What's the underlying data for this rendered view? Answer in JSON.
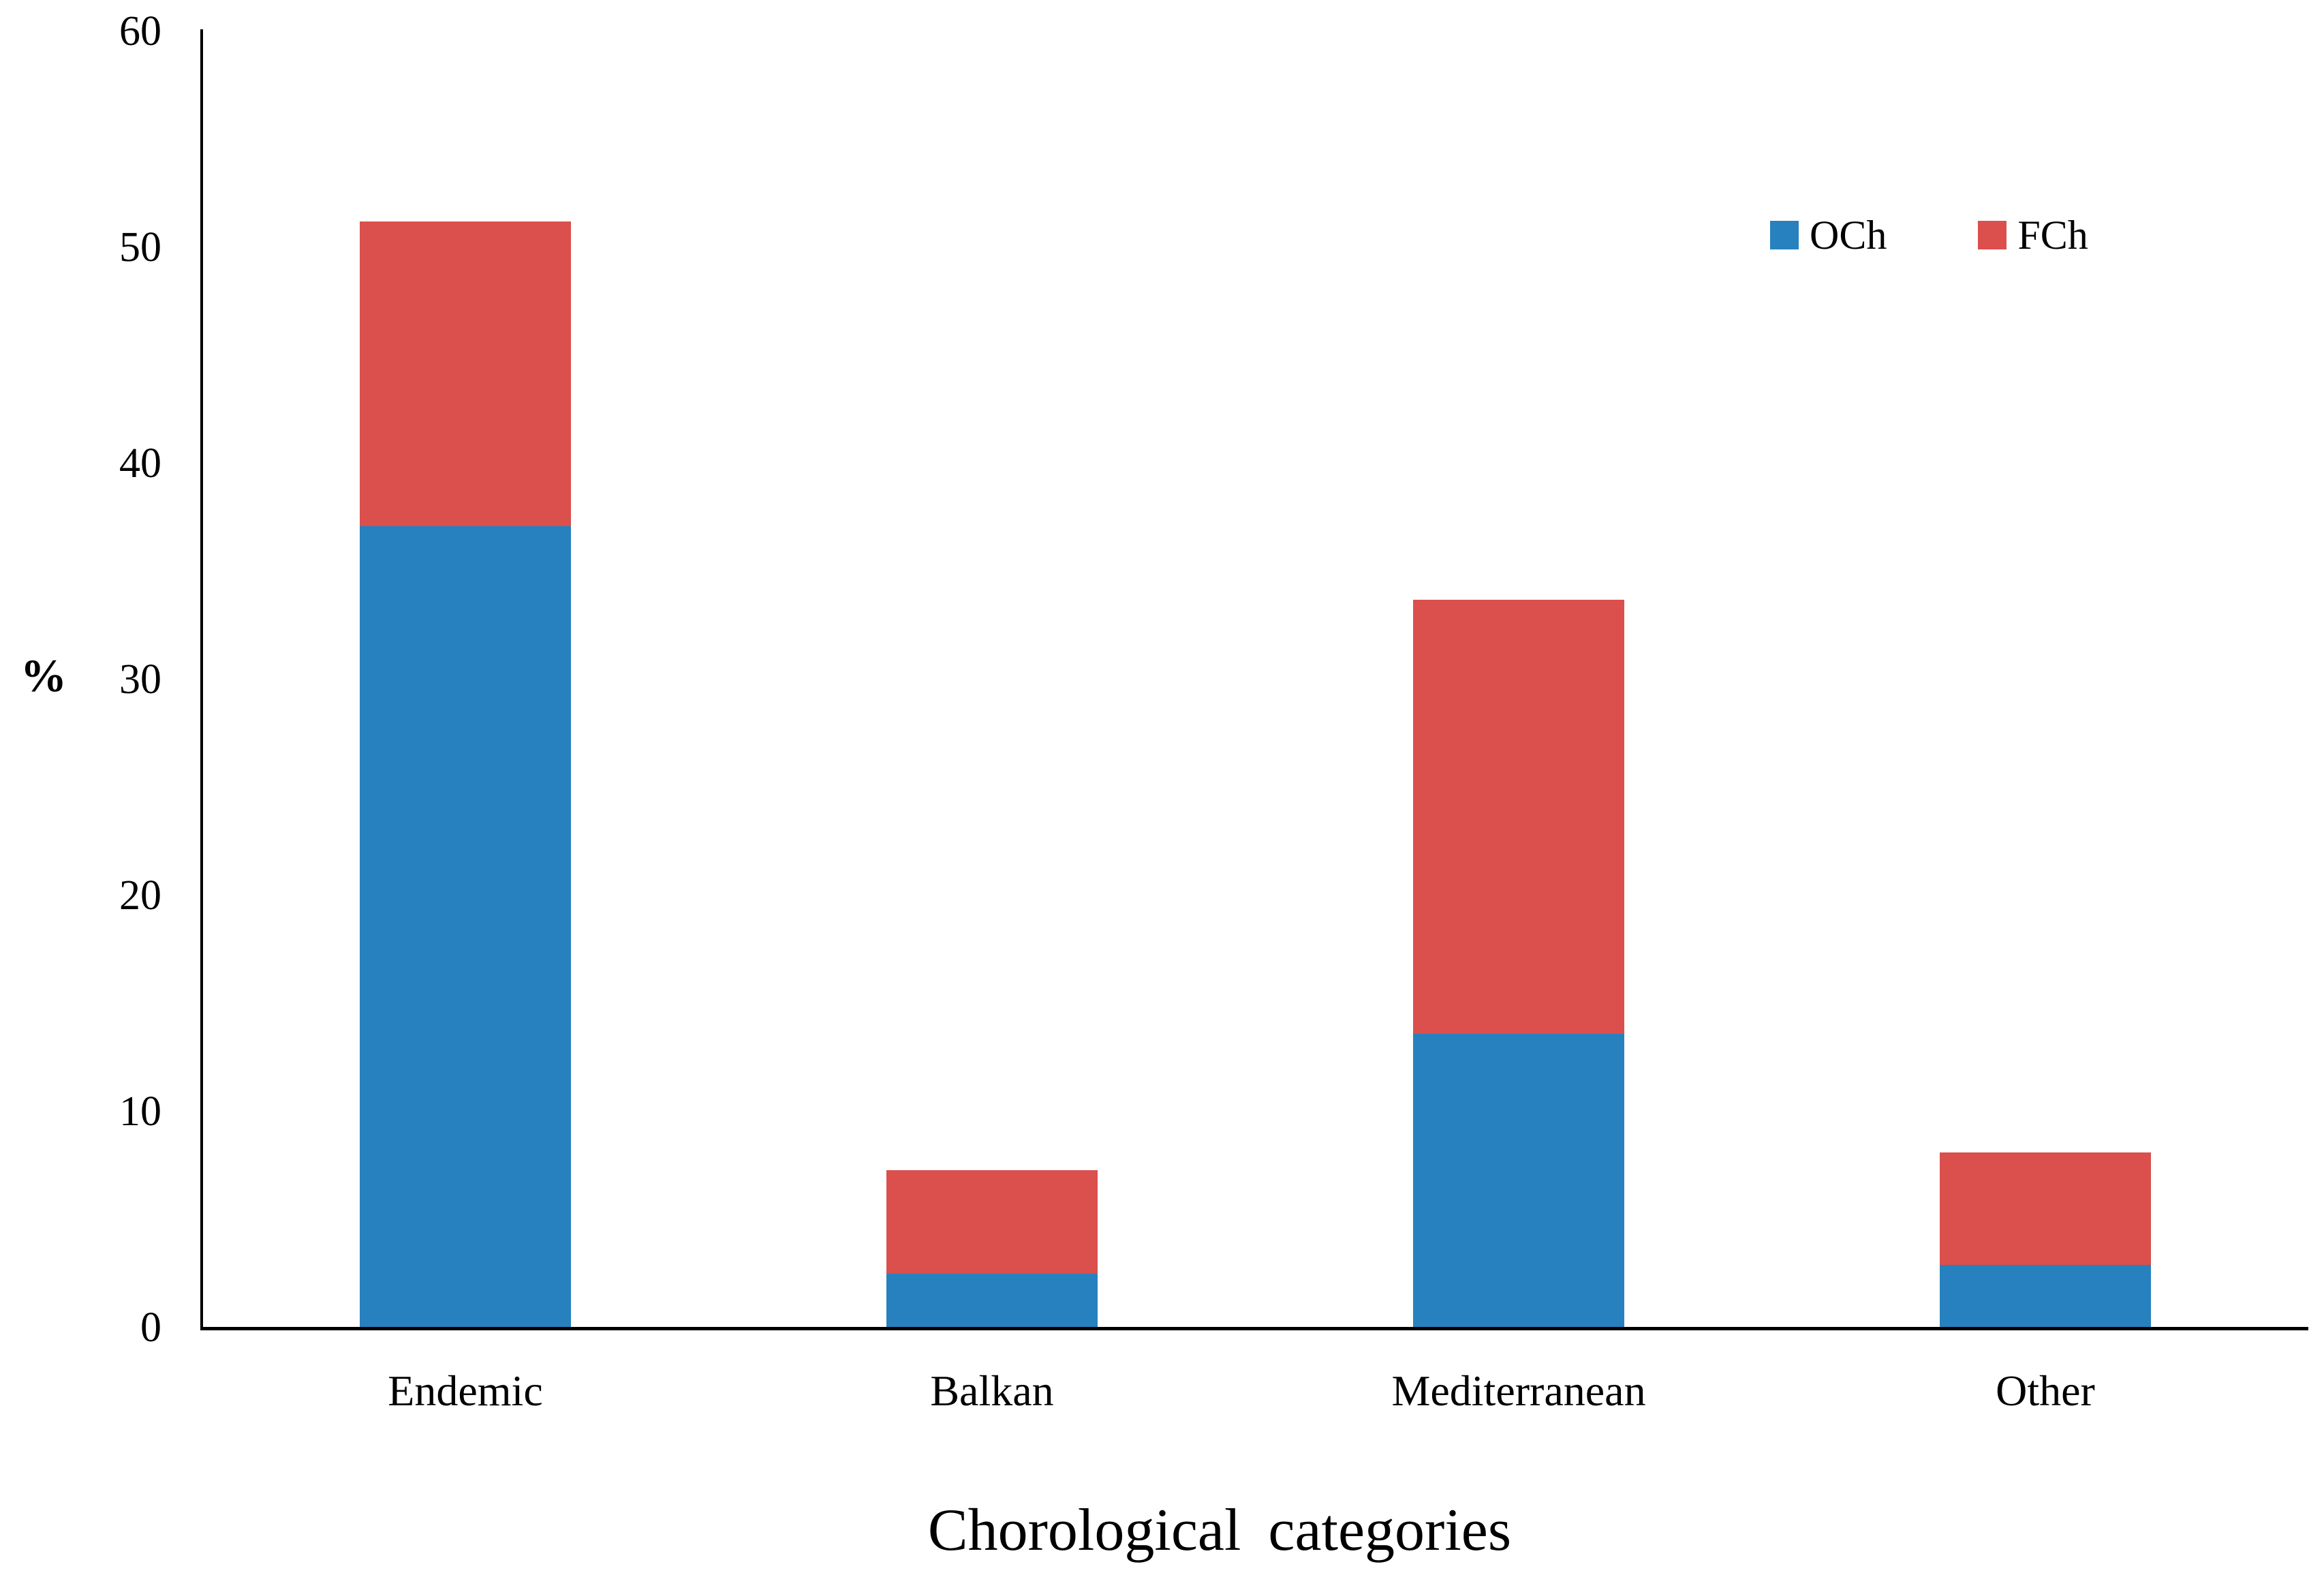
{
  "chart_data": {
    "type": "bar",
    "stacked": true,
    "categories": [
      "Endemic",
      "Balkan",
      "Mediterranean",
      "Other"
    ],
    "series": [
      {
        "name": "OCh",
        "color": "#2781BE",
        "values": [
          37.1,
          2.5,
          13.6,
          2.9
        ]
      },
      {
        "name": "FCh",
        "color": "#DB4F4C",
        "values": [
          14.1,
          4.8,
          20.1,
          5.2
        ]
      }
    ],
    "title": "",
    "xlabel": "Chorological categories",
    "ylabel": "%",
    "ylim": [
      0,
      60
    ],
    "yticks": [
      0,
      10,
      20,
      30,
      40,
      50,
      60
    ],
    "grid": false,
    "legend_position": "top-right",
    "axis_color": "#000000",
    "background_color": "#ffffff"
  }
}
